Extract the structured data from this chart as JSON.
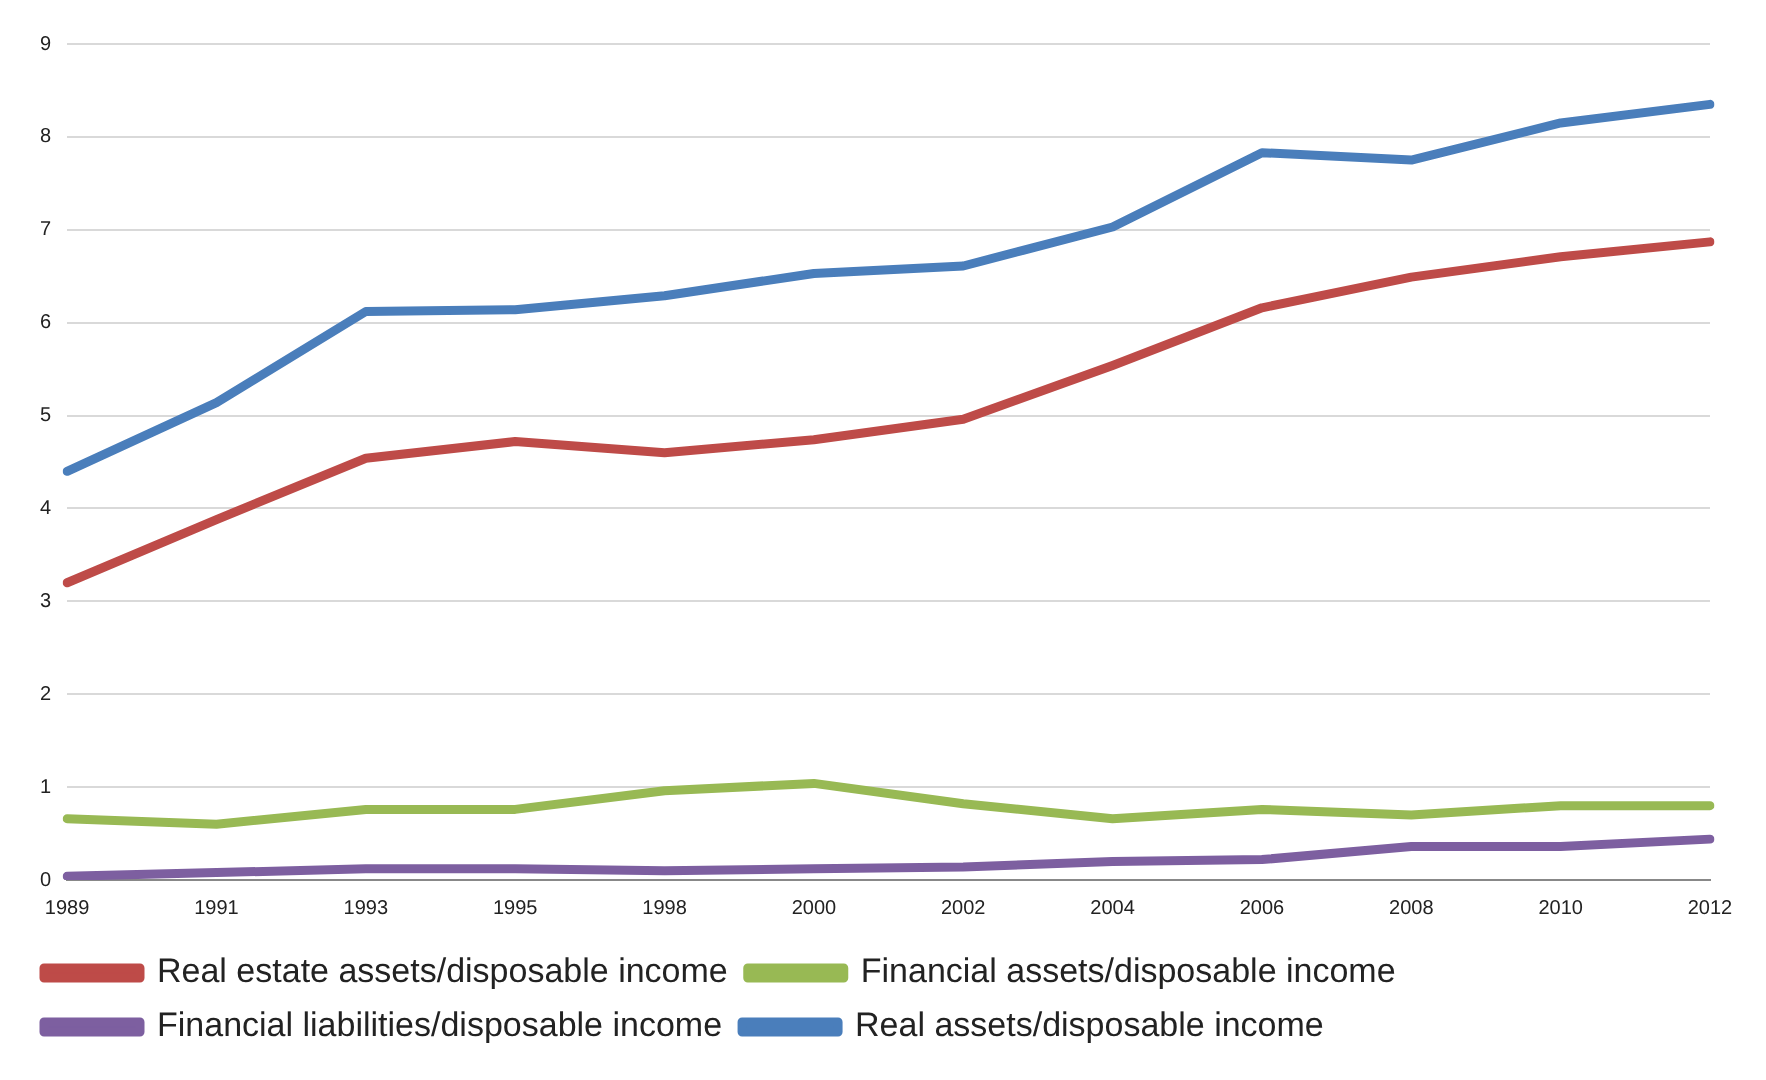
{
  "chart_data": {
    "type": "line",
    "categories": [
      "1989",
      "1991",
      "1993",
      "1995",
      "1998",
      "2000",
      "2002",
      "2004",
      "2006",
      "2008",
      "2010",
      "2012"
    ],
    "series": [
      {
        "name": "Real estate assets/disposable income",
        "color": "#be4b48",
        "values": [
          3.2,
          3.88,
          4.54,
          4.72,
          4.6,
          4.74,
          4.96,
          5.54,
          6.16,
          6.49,
          6.71,
          6.87
        ]
      },
      {
        "name": "Financial assets/disposable income",
        "color": "#98b954",
        "values": [
          0.66,
          0.6,
          0.76,
          0.76,
          0.96,
          1.04,
          0.82,
          0.66,
          0.76,
          0.7,
          0.8,
          0.8
        ]
      },
      {
        "name": "Financial liabilities/disposable income",
        "color": "#7d5fa0",
        "values": [
          0.04,
          0.08,
          0.12,
          0.12,
          0.1,
          0.12,
          0.14,
          0.2,
          0.22,
          0.36,
          0.36,
          0.44
        ]
      },
      {
        "name": "Real assets/disposable income",
        "color": "#4a7ebb",
        "values": [
          4.4,
          5.14,
          6.12,
          6.14,
          6.29,
          6.53,
          6.61,
          7.03,
          7.83,
          7.75,
          8.15,
          8.35
        ]
      }
    ],
    "ylim": [
      0,
      9
    ],
    "yticks": [
      0,
      1,
      2,
      3,
      4,
      5,
      6,
      7,
      8,
      9
    ],
    "grid": "y",
    "legend": "bottom",
    "marker": "none",
    "line_style": "solid"
  }
}
